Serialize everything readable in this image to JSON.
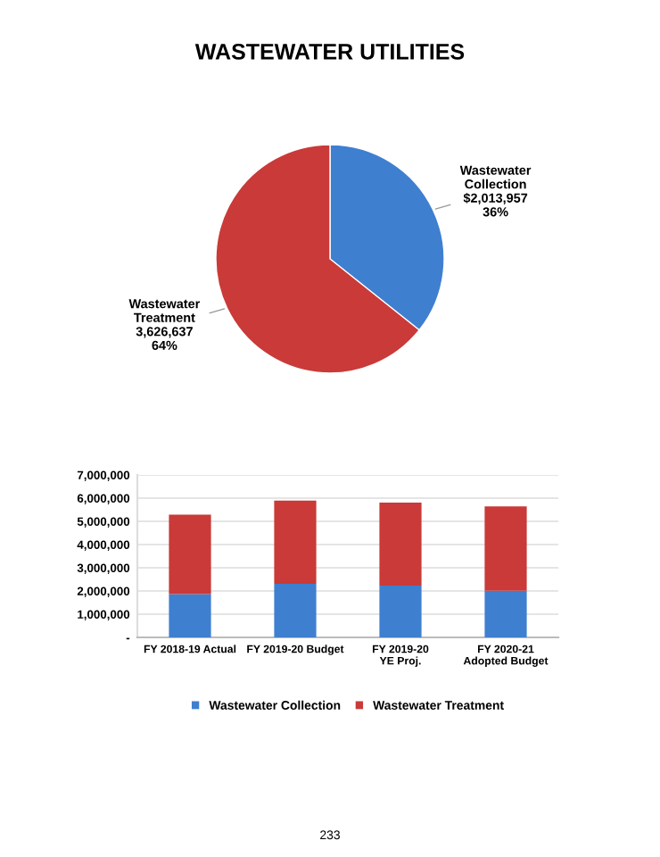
{
  "chart_data": [
    {
      "type": "pie",
      "title": "WASTEWATER UTILITIES",
      "categories": [
        "Wastewater\nCollection",
        "Wastewater\nTreatment"
      ],
      "values": [
        2013957,
        3626637
      ],
      "colors": [
        "#3f7fd0",
        "#c93a38"
      ],
      "value_labels": [
        "$2,013,957\n36%",
        "3,626,637\n64%"
      ]
    },
    {
      "type": "bar",
      "stacked": true,
      "categories": [
        "FY 2018-19 Actual",
        "FY 2019-20 Budget",
        "FY 2019-20\nYE Proj.",
        "FY 2020-21\nAdopted Budget"
      ],
      "series": [
        {
          "name": "Wastewater Collection",
          "color": "#3f7fd0",
          "values": [
            1870000,
            2310000,
            2230000,
            2010000
          ]
        },
        {
          "name": "Wastewater Treatment",
          "color": "#c93a38",
          "values": [
            3420000,
            3580000,
            3580000,
            3630000
          ]
        }
      ],
      "ylim": [
        0,
        7000000
      ],
      "yticks": [
        {
          "value": 0,
          "label": "-"
        },
        {
          "value": 1000000,
          "label": "1,000,000"
        },
        {
          "value": 2000000,
          "label": "2,000,000"
        },
        {
          "value": 3000000,
          "label": "3,000,000"
        },
        {
          "value": 4000000,
          "label": "4,000,000"
        },
        {
          "value": 5000000,
          "label": "5,000,000"
        },
        {
          "value": 6000000,
          "label": "6,000,000"
        },
        {
          "value": 7000000,
          "label": "7,000,000"
        }
      ],
      "grid": "y",
      "legend": "bottom",
      "annotations": [
        "233"
      ]
    }
  ]
}
